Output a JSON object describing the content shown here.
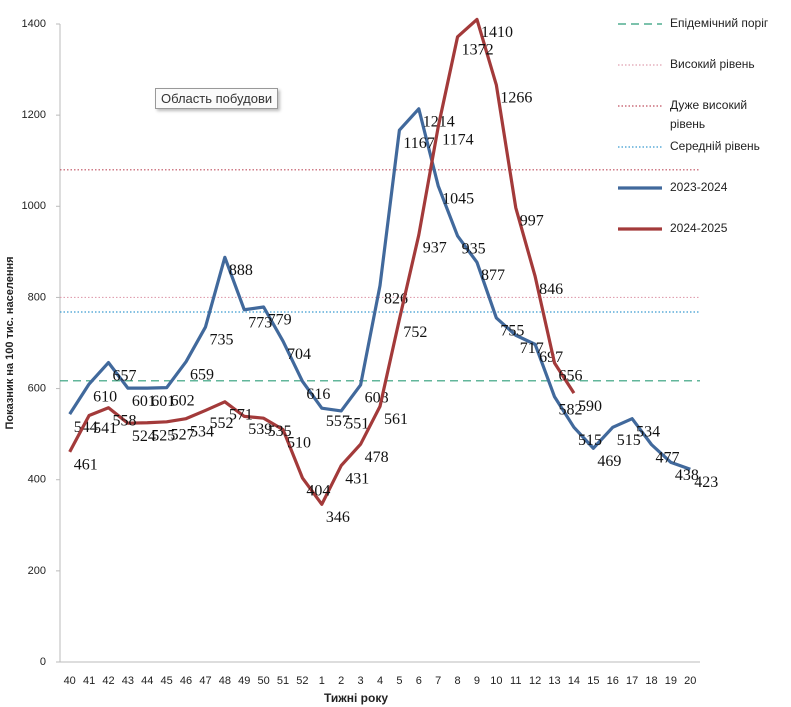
{
  "chart_data": {
    "type": "line",
    "y_label": "Показник на 100 тис. населення",
    "x_label": "Тижні року",
    "annotation": "Область побудови",
    "categories": [
      "40",
      "41",
      "42",
      "43",
      "44",
      "45",
      "46",
      "47",
      "48",
      "49",
      "50",
      "51",
      "52",
      "1",
      "2",
      "3",
      "4",
      "5",
      "6",
      "7",
      "8",
      "9",
      "10",
      "11",
      "12",
      "13",
      "14",
      "15",
      "16",
      "17",
      "18",
      "19",
      "20"
    ],
    "series": [
      {
        "name": "2023-2024",
        "color": "#41699c",
        "values": [
          544,
          610,
          657,
          601,
          601,
          602,
          659,
          735,
          888,
          773,
          779,
          704,
          616,
          557,
          551,
          608,
          826,
          1167,
          1214,
          1045,
          935,
          877,
          755,
          717,
          697,
          582,
          515,
          469,
          515,
          534,
          477,
          438,
          423
        ]
      },
      {
        "name": "2024-2025",
        "color": "#a33a3a",
        "values": [
          461,
          541,
          558,
          524,
          525,
          527,
          534,
          552,
          571,
          539,
          535,
          510,
          404,
          346,
          431,
          478,
          561,
          752,
          937,
          1174,
          1372,
          1410,
          1266,
          997,
          846,
          656,
          590,
          null,
          null,
          null,
          null,
          null,
          null
        ]
      }
    ],
    "thresholds": [
      {
        "name": "Епідемічний поріг",
        "value": 617,
        "color": "#2e9e7a",
        "style": "dashed"
      },
      {
        "name": "Високий рівень",
        "value": 800,
        "color": "#e0a0b0",
        "style": "dotted"
      },
      {
        "name": "Дуже високий рівень",
        "value": 1080,
        "color": "#c05060",
        "style": "dotted"
      },
      {
        "name": "Середній рівень",
        "value": 768,
        "color": "#3a9ad0",
        "style": "dotted"
      }
    ],
    "ylim": [
      0,
      1400
    ],
    "yticks": [
      0,
      200,
      400,
      600,
      800,
      1000,
      1200,
      1400
    ]
  }
}
